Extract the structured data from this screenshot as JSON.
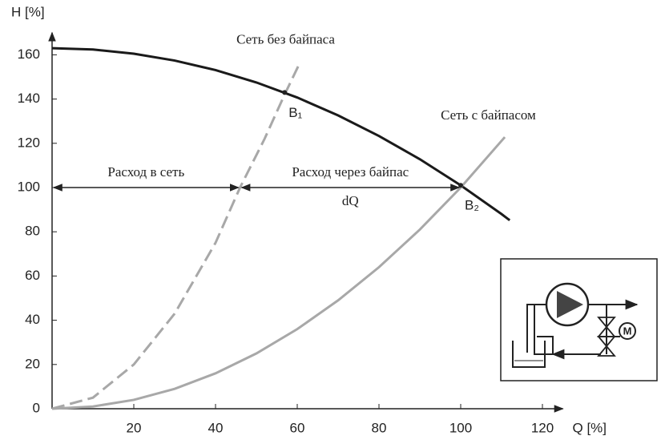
{
  "chart_data": {
    "type": "line",
    "y_label": "H [%]",
    "x_label": "Q [%]",
    "xlim": [
      0,
      125
    ],
    "ylim": [
      0,
      170
    ],
    "xticks": [
      20,
      40,
      60,
      80,
      100,
      120
    ],
    "yticks": [
      0,
      20,
      40,
      60,
      80,
      100,
      120,
      140,
      160
    ],
    "series": [
      {
        "color": "#1a1a1a",
        "dashed": false,
        "x": [
          0,
          10,
          20,
          30,
          40,
          50,
          60,
          70,
          80,
          90,
          100,
          110,
          112
        ],
        "values": [
          163,
          162.4,
          160.5,
          157.4,
          153.1,
          147.5,
          140.7,
          132.6,
          123.3,
          112.8,
          101,
          88,
          85.2
        ]
      },
      {
        "name": "Сеть без байпаса",
        "color": "#a8a8a8",
        "dashed": true,
        "x": [
          0,
          10,
          20,
          30,
          40,
          46,
          52,
          56.9,
          60.8
        ],
        "values": [
          0,
          5,
          20,
          43,
          75,
          100,
          122,
          142,
          157
        ]
      },
      {
        "name": "Сеть с байпасом",
        "color": "#a8a8a8",
        "dashed": false,
        "x": [
          0,
          10,
          20,
          30,
          40,
          50,
          60,
          70,
          80,
          90,
          100,
          110.8
        ],
        "values": [
          0,
          1,
          4,
          9,
          16,
          25,
          36,
          49,
          64,
          81,
          100,
          122.8
        ]
      }
    ],
    "points": [
      {
        "label": "B₁",
        "x": 56.9,
        "y": 143
      },
      {
        "label": "B₂",
        "x": 100,
        "y": 101
      }
    ],
    "flow_labels": [
      "Расход в сеть",
      "Расход через байпас",
      "dQ"
    ]
  }
}
